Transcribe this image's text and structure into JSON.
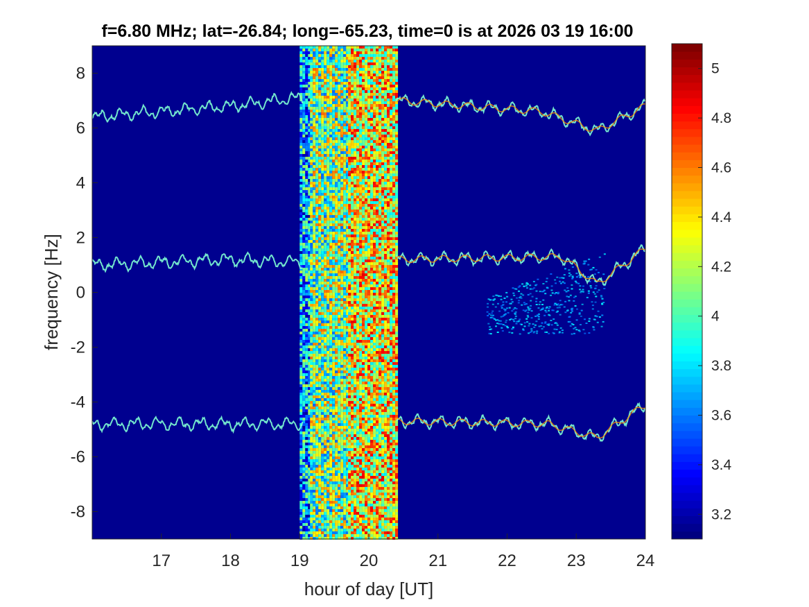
{
  "chart_data": {
    "type": "heatmap",
    "title": "f=6.80 MHz;  lat=-26.84; long=-65.23, time=0 is at 2026 03 19 16:00",
    "xlabel": "hour of day [UT]",
    "ylabel": "frequency [Hz]",
    "xlim": [
      16,
      24
    ],
    "ylim": [
      -9,
      9
    ],
    "x_ticks": [
      "17",
      "18",
      "19",
      "20",
      "21",
      "22",
      "23",
      "24"
    ],
    "y_ticks": [
      "8",
      "6",
      "4",
      "2",
      "0",
      "-2",
      "-4",
      "-6",
      "-8"
    ],
    "colorbar": {
      "colormap": "jet",
      "range": [
        3.1,
        5.1
      ],
      "ticks": [
        "5",
        "4.8",
        "4.6",
        "4.4",
        "4.2",
        "4",
        "3.8",
        "3.6",
        "3.4",
        "3.2"
      ]
    },
    "background_value": 3.15,
    "noise_bands": [
      {
        "x_start": 19.0,
        "x_end": 19.15,
        "level": 3.7
      },
      {
        "x_start": 19.15,
        "x_end": 19.7,
        "level": 4.1
      },
      {
        "x_start": 19.7,
        "x_end": 20.4,
        "level": 4.35
      }
    ],
    "traces": [
      {
        "name": "",
        "x_start": 16.0,
        "x_end": 24.0,
        "baseline": [
          [
            16.0,
            6.4
          ],
          [
            18.0,
            6.8
          ],
          [
            19.0,
            7.1
          ],
          [
            20.4,
            7.0
          ],
          [
            22.5,
            6.6
          ],
          [
            23.3,
            5.9
          ],
          [
            24.0,
            6.8
          ]
        ],
        "gap": [
          19.05,
          20.4
        ]
      },
      {
        "name": "",
        "x_start": 16.0,
        "x_end": 24.0,
        "baseline": [
          [
            16.0,
            1.0
          ],
          [
            18.0,
            1.2
          ],
          [
            19.0,
            1.1
          ],
          [
            20.4,
            1.2
          ],
          [
            22.8,
            1.3
          ],
          [
            23.3,
            0.3
          ],
          [
            24.0,
            1.6
          ]
        ],
        "gap": [
          19.05,
          20.4
        ]
      },
      {
        "name": "",
        "x_start": 16.0,
        "x_end": 24.0,
        "baseline": [
          [
            16.0,
            -4.8
          ],
          [
            18.0,
            -4.8
          ],
          [
            19.0,
            -4.8
          ],
          [
            20.4,
            -4.7
          ],
          [
            22.6,
            -4.8
          ],
          [
            23.3,
            -5.3
          ],
          [
            24.0,
            -4.1
          ]
        ],
        "gap": [
          19.05,
          20.4
        ]
      }
    ],
    "diffuse_patch": {
      "x_range": [
        21.7,
        23.4
      ],
      "y_range": [
        -1.5,
        1.2
      ],
      "level": 3.7
    }
  }
}
